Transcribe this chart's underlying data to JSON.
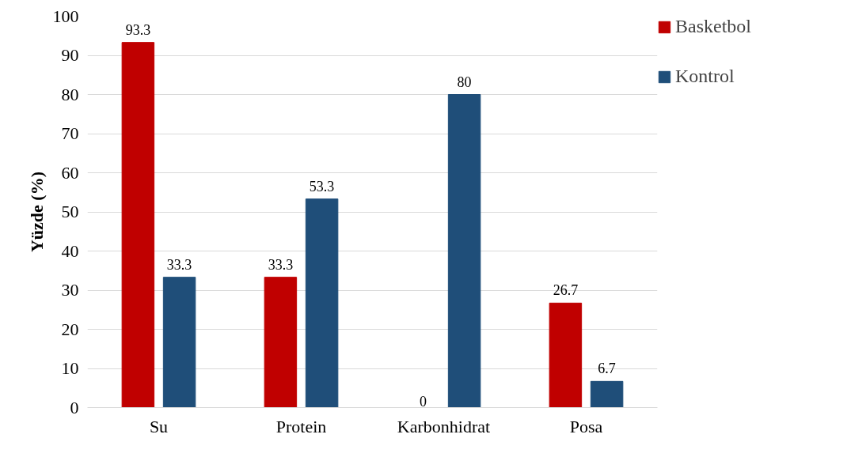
{
  "chart_data": {
    "type": "bar",
    "ylabel": "Yüzde (%)",
    "categories": [
      "Su",
      "Protein",
      "Karbonhidrat",
      "Posa"
    ],
    "series": [
      {
        "name": "Basketbol",
        "color": "#c00000",
        "values": [
          93.3,
          33.3,
          0,
          26.7
        ]
      },
      {
        "name": "Kontrol",
        "color": "#1f4e79",
        "values": [
          33.3,
          53.3,
          80,
          6.7
        ]
      }
    ],
    "ylim": [
      0,
      100
    ],
    "yticks": [
      0,
      10,
      20,
      30,
      40,
      50,
      60,
      70,
      80,
      90,
      100
    ],
    "grid": "y",
    "legend": "top right",
    "data_labels": true
  }
}
